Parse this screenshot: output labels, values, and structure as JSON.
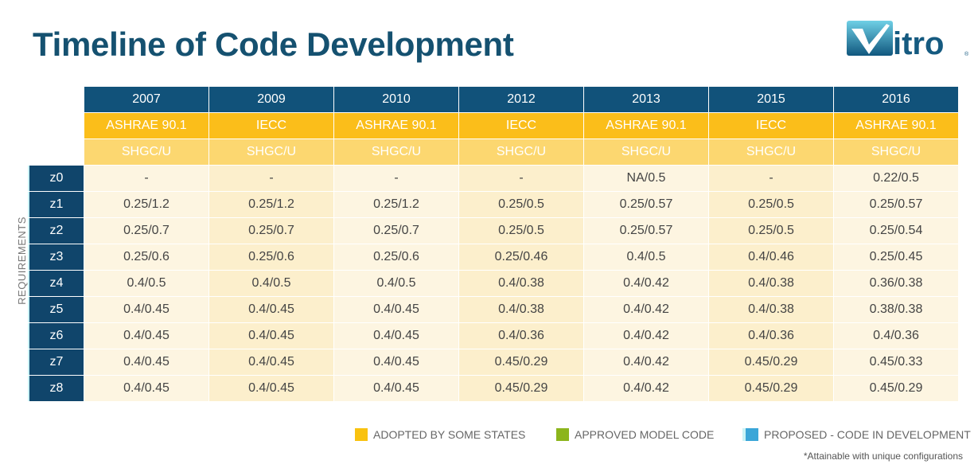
{
  "title": "Timeline of Code Development",
  "logo_text": "Vitro",
  "side_label": "REQUIREMENTS",
  "columns": [
    {
      "year": "2007",
      "code": "ASHRAE 90.1",
      "metric": "SHGC/U"
    },
    {
      "year": "2009",
      "code": "IECC",
      "metric": "SHGC/U"
    },
    {
      "year": "2010",
      "code": "ASHRAE 90.1",
      "metric": "SHGC/U"
    },
    {
      "year": "2012",
      "code": "IECC",
      "metric": "SHGC/U"
    },
    {
      "year": "2013",
      "code": "ASHRAE 90.1",
      "metric": "SHGC/U"
    },
    {
      "year": "2015",
      "code": "IECC",
      "metric": "SHGC/U"
    },
    {
      "year": "2016",
      "code": "ASHRAE 90.1",
      "metric": "SHGC/U"
    }
  ],
  "rows": [
    {
      "zone": "z0",
      "values": [
        "-",
        "-",
        "-",
        "-",
        "NA/0.5",
        "-",
        "0.22/0.5"
      ]
    },
    {
      "zone": "z1",
      "values": [
        "0.25/1.2",
        "0.25/1.2",
        "0.25/1.2",
        "0.25/0.5",
        "0.25/0.57",
        "0.25/0.5",
        "0.25/0.57"
      ]
    },
    {
      "zone": "z2",
      "values": [
        "0.25/0.7",
        "0.25/0.7",
        "0.25/0.7",
        "0.25/0.5",
        "0.25/0.57",
        "0.25/0.5",
        "0.25/0.54"
      ]
    },
    {
      "zone": "z3",
      "values": [
        "0.25/0.6",
        "0.25/0.6",
        "0.25/0.6",
        "0.25/0.46",
        "0.4/0.5",
        "0.4/0.46",
        "0.25/0.45"
      ]
    },
    {
      "zone": "z4",
      "values": [
        "0.4/0.5",
        "0.4/0.5",
        "0.4/0.5",
        "0.4/0.38",
        "0.4/0.42",
        "0.4/0.38",
        "0.36/0.38"
      ]
    },
    {
      "zone": "z5",
      "values": [
        "0.4/0.45",
        "0.4/0.45",
        "0.4/0.45",
        "0.4/0.38",
        "0.4/0.42",
        "0.4/0.38",
        "0.38/0.38"
      ]
    },
    {
      "zone": "z6",
      "values": [
        "0.4/0.45",
        "0.4/0.45",
        "0.4/0.45",
        "0.4/0.36",
        "0.4/0.42",
        "0.4/0.36",
        "0.4/0.36"
      ]
    },
    {
      "zone": "z7",
      "values": [
        "0.4/0.45",
        "0.4/0.45",
        "0.4/0.45",
        "0.45/0.29",
        "0.4/0.42",
        "0.45/0.29",
        "0.45/0.33"
      ]
    },
    {
      "zone": "z8",
      "values": [
        "0.4/0.45",
        "0.4/0.45",
        "0.4/0.45",
        "0.45/0.29",
        "0.4/0.42",
        "0.45/0.29",
        "0.45/0.29"
      ]
    }
  ],
  "legend": [
    {
      "label": "ADOPTED BY SOME STATES",
      "color": "#f9c20f"
    },
    {
      "label": "APPROVED MODEL CODE",
      "color": "#8cb51c"
    },
    {
      "label": "PROPOSED - CODE IN DEVELOPMENT",
      "color": "#3aa6d8"
    }
  ],
  "footnote": "*Attainable with unique configurations"
}
